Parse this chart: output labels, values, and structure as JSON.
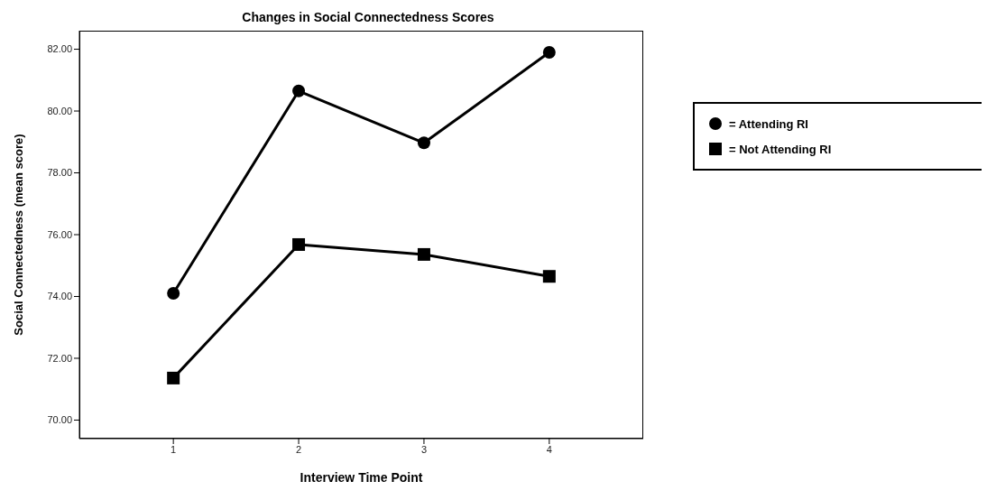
{
  "chart_data": {
    "type": "line",
    "title": "Changes in Social Connectedness Scores",
    "xlabel": "Interview Time Point",
    "ylabel": "Social Connectedness (mean score)",
    "x": [
      1,
      2,
      3,
      4
    ],
    "series": [
      {
        "name": "= Attending RI",
        "color": "#000000",
        "marker": "circle",
        "values": [
          74.1,
          80.65,
          78.97,
          81.9
        ]
      },
      {
        "name": "= Not Attending RI",
        "color": "#000000",
        "marker": "square",
        "values": [
          71.36,
          75.68,
          75.36,
          74.65
        ]
      }
    ],
    "xlim": [
      0.25,
      4.75
    ],
    "xticks": [
      1,
      2,
      3,
      4
    ],
    "ylim": [
      69.4,
      82.6
    ],
    "yticks": [
      {
        "value": 70,
        "label": "70.00"
      },
      {
        "value": 72,
        "label": "72.00"
      },
      {
        "value": 74,
        "label": "74.00"
      },
      {
        "value": 76,
        "label": "76.00"
      },
      {
        "value": 78,
        "label": "78.00"
      },
      {
        "value": 80,
        "label": "80.00"
      },
      {
        "value": 82,
        "label": "82.00"
      }
    ],
    "grid": false,
    "legend": "right",
    "line_style": "solid"
  }
}
